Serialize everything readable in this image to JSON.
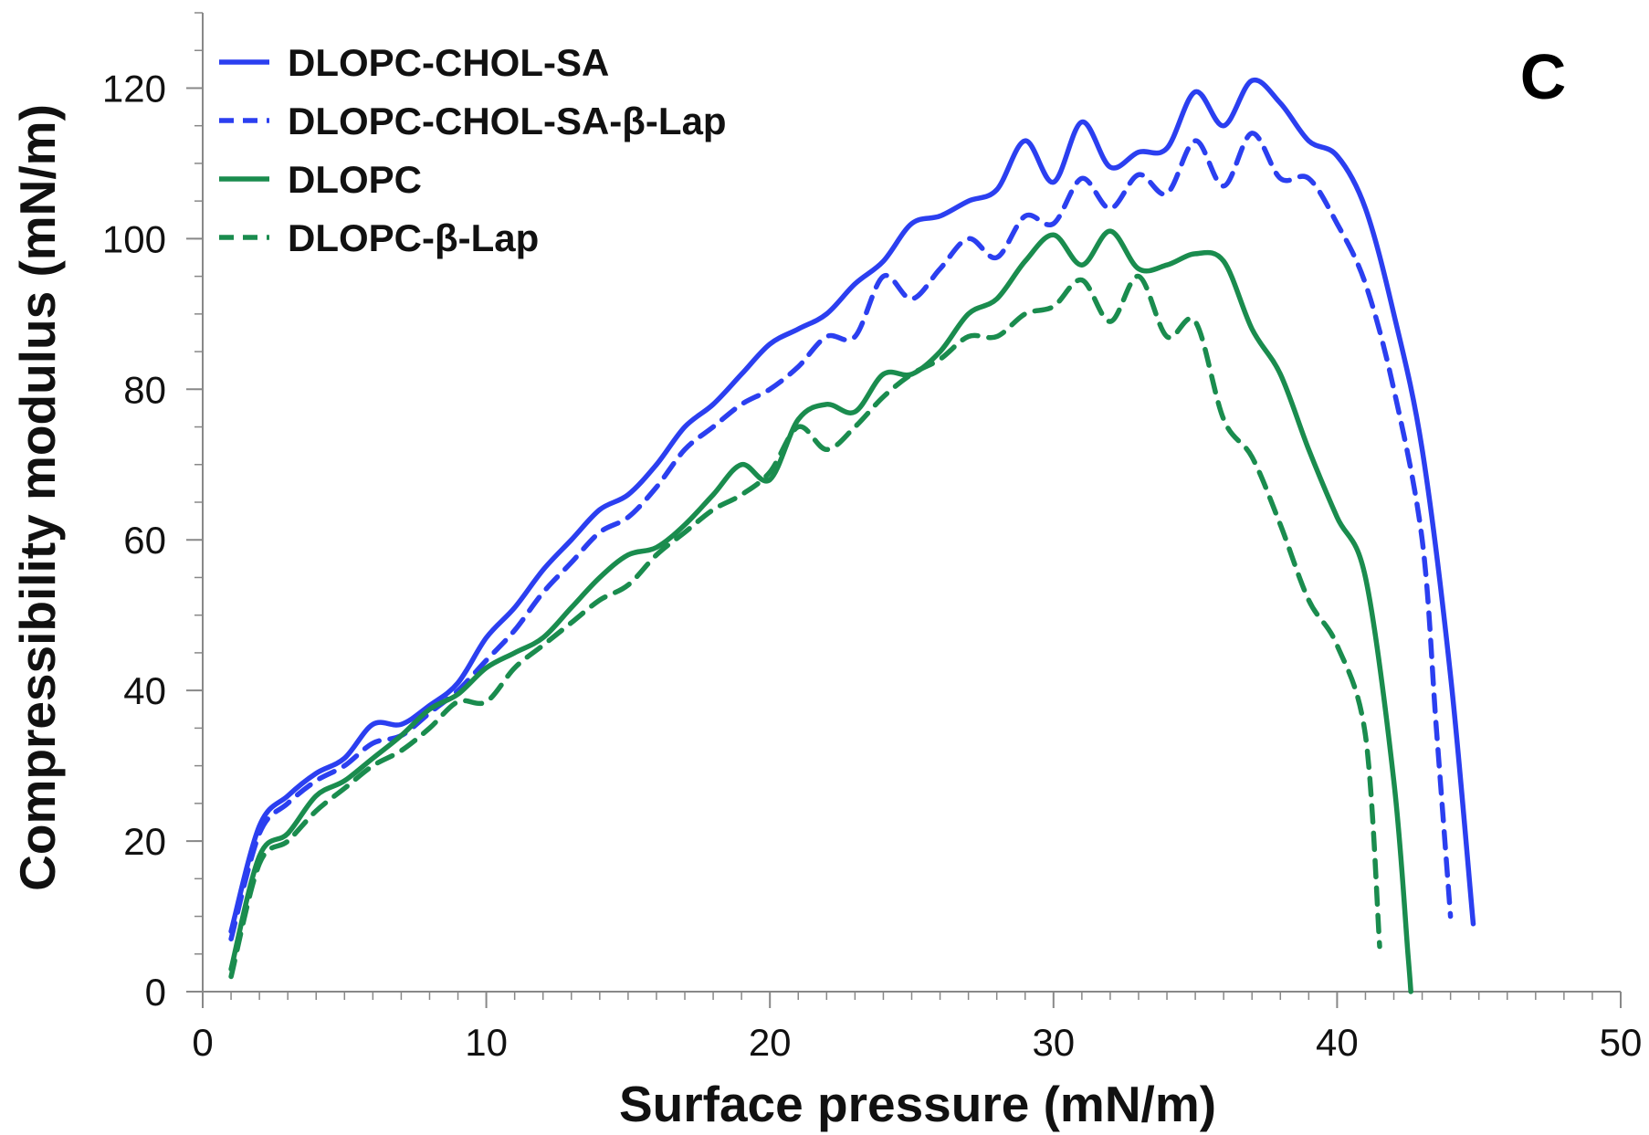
{
  "chart_data": {
    "type": "line",
    "panel_label": "C",
    "xlabel": "Surface pressure (mN/m)",
    "ylabel": "Compressibility modulus (mN/m)",
    "xlim": [
      0,
      50
    ],
    "ylim": [
      0,
      130
    ],
    "x_ticks": [
      0,
      10,
      20,
      30,
      40,
      50
    ],
    "y_ticks": [
      0,
      20,
      40,
      60,
      80,
      100,
      120
    ],
    "x_tick_labels": [
      "0",
      "10",
      "20",
      "30",
      "40",
      "50"
    ],
    "y_tick_labels": [
      "0",
      "20",
      "40",
      "60",
      "80",
      "100",
      "120"
    ],
    "grid": false,
    "legend_position": "top-left",
    "series": [
      {
        "name": "DLOPC-CHOL-SA",
        "color": "#2b3ff0",
        "dash": "solid",
        "points": [
          [
            1,
            8
          ],
          [
            2,
            22
          ],
          [
            3,
            26
          ],
          [
            4,
            29
          ],
          [
            5,
            31
          ],
          [
            6,
            35.5
          ],
          [
            7,
            35.5
          ],
          [
            8,
            38
          ],
          [
            9,
            41
          ],
          [
            10,
            47
          ],
          [
            11,
            51
          ],
          [
            12,
            56
          ],
          [
            13,
            60
          ],
          [
            14,
            64
          ],
          [
            15,
            66
          ],
          [
            16,
            70
          ],
          [
            17,
            75
          ],
          [
            18,
            78
          ],
          [
            19,
            82
          ],
          [
            20,
            86
          ],
          [
            21,
            88
          ],
          [
            22,
            90
          ],
          [
            23,
            94
          ],
          [
            24,
            97
          ],
          [
            25,
            102
          ],
          [
            26,
            103
          ],
          [
            27,
            105
          ],
          [
            28,
            106.5
          ],
          [
            29,
            113
          ],
          [
            30,
            107.5
          ],
          [
            31,
            115.5
          ],
          [
            32,
            109.5
          ],
          [
            33,
            111.5
          ],
          [
            34,
            112
          ],
          [
            35,
            119.5
          ],
          [
            36,
            115
          ],
          [
            37,
            121
          ],
          [
            38,
            118
          ],
          [
            39,
            113
          ],
          [
            40,
            111
          ],
          [
            41,
            104
          ],
          [
            42,
            90
          ],
          [
            43,
            72
          ],
          [
            44,
            42
          ],
          [
            44.8,
            9
          ]
        ]
      },
      {
        "name": "DLOPC-CHOL-SA-β-Lap",
        "color": "#2b3ff0",
        "dash": "dashed",
        "points": [
          [
            1,
            7
          ],
          [
            2,
            21
          ],
          [
            3,
            25
          ],
          [
            4,
            28
          ],
          [
            5,
            30
          ],
          [
            6,
            33
          ],
          [
            7,
            34
          ],
          [
            8,
            37
          ],
          [
            9,
            40
          ],
          [
            10,
            44
          ],
          [
            11,
            48
          ],
          [
            12,
            53
          ],
          [
            13,
            57
          ],
          [
            14,
            61
          ],
          [
            15,
            63
          ],
          [
            16,
            67
          ],
          [
            17,
            72
          ],
          [
            18,
            75
          ],
          [
            19,
            78
          ],
          [
            20,
            80
          ],
          [
            21,
            83
          ],
          [
            22,
            87
          ],
          [
            23,
            87
          ],
          [
            24,
            95
          ],
          [
            25,
            92
          ],
          [
            26,
            96
          ],
          [
            27,
            100
          ],
          [
            28,
            97.5
          ],
          [
            29,
            103
          ],
          [
            30,
            102
          ],
          [
            31,
            108
          ],
          [
            32,
            104
          ],
          [
            33,
            108.5
          ],
          [
            34,
            106
          ],
          [
            35,
            113
          ],
          [
            36,
            107
          ],
          [
            37,
            114
          ],
          [
            38,
            108
          ],
          [
            39,
            108
          ],
          [
            40,
            102
          ],
          [
            41,
            94
          ],
          [
            42,
            80
          ],
          [
            43,
            60
          ],
          [
            43.5,
            35
          ],
          [
            44,
            10
          ]
        ]
      },
      {
        "name": "DLOPC",
        "color": "#1a8c4e",
        "dash": "solid",
        "points": [
          [
            1,
            3
          ],
          [
            2,
            18
          ],
          [
            3,
            21
          ],
          [
            4,
            26
          ],
          [
            5,
            28
          ],
          [
            6,
            31
          ],
          [
            7,
            34
          ],
          [
            8,
            37.5
          ],
          [
            9,
            39.5
          ],
          [
            10,
            43
          ],
          [
            11,
            45
          ],
          [
            12,
            47
          ],
          [
            13,
            51
          ],
          [
            14,
            55
          ],
          [
            15,
            58
          ],
          [
            16,
            59
          ],
          [
            17,
            62
          ],
          [
            18,
            66
          ],
          [
            19,
            70
          ],
          [
            20,
            68
          ],
          [
            21,
            76
          ],
          [
            22,
            78
          ],
          [
            23,
            77
          ],
          [
            24,
            82
          ],
          [
            25,
            82
          ],
          [
            26,
            85
          ],
          [
            27,
            90
          ],
          [
            28,
            92
          ],
          [
            29,
            97
          ],
          [
            30,
            100.5
          ],
          [
            31,
            96.5
          ],
          [
            32,
            101
          ],
          [
            33,
            96
          ],
          [
            34,
            96.5
          ],
          [
            35,
            98
          ],
          [
            36,
            97
          ],
          [
            37,
            88
          ],
          [
            38,
            82
          ],
          [
            39,
            72
          ],
          [
            40,
            63
          ],
          [
            41,
            55
          ],
          [
            42,
            28
          ],
          [
            42.5,
            5
          ],
          [
            42.6,
            0
          ]
        ]
      },
      {
        "name": "DLOPC-β-Lap",
        "color": "#1a8c4e",
        "dash": "dashed",
        "points": [
          [
            1,
            2
          ],
          [
            2,
            17
          ],
          [
            3,
            20
          ],
          [
            4,
            24
          ],
          [
            5,
            27
          ],
          [
            6,
            30
          ],
          [
            7,
            32
          ],
          [
            8,
            35
          ],
          [
            9,
            38.5
          ],
          [
            10,
            38.5
          ],
          [
            11,
            43
          ],
          [
            12,
            46
          ],
          [
            13,
            49
          ],
          [
            14,
            52
          ],
          [
            15,
            54
          ],
          [
            16,
            58
          ],
          [
            17,
            61
          ],
          [
            18,
            64
          ],
          [
            19,
            66
          ],
          [
            20,
            69
          ],
          [
            21,
            75
          ],
          [
            22,
            72
          ],
          [
            23,
            75
          ],
          [
            24,
            79
          ],
          [
            25,
            82
          ],
          [
            26,
            84
          ],
          [
            27,
            87
          ],
          [
            28,
            87
          ],
          [
            29,
            90
          ],
          [
            30,
            91
          ],
          [
            31,
            94.5
          ],
          [
            32,
            89
          ],
          [
            33,
            95
          ],
          [
            34,
            87
          ],
          [
            35,
            89
          ],
          [
            36,
            76
          ],
          [
            37,
            71
          ],
          [
            38,
            62
          ],
          [
            39,
            52
          ],
          [
            40,
            46
          ],
          [
            41,
            34
          ],
          [
            41.5,
            6
          ]
        ]
      }
    ]
  }
}
